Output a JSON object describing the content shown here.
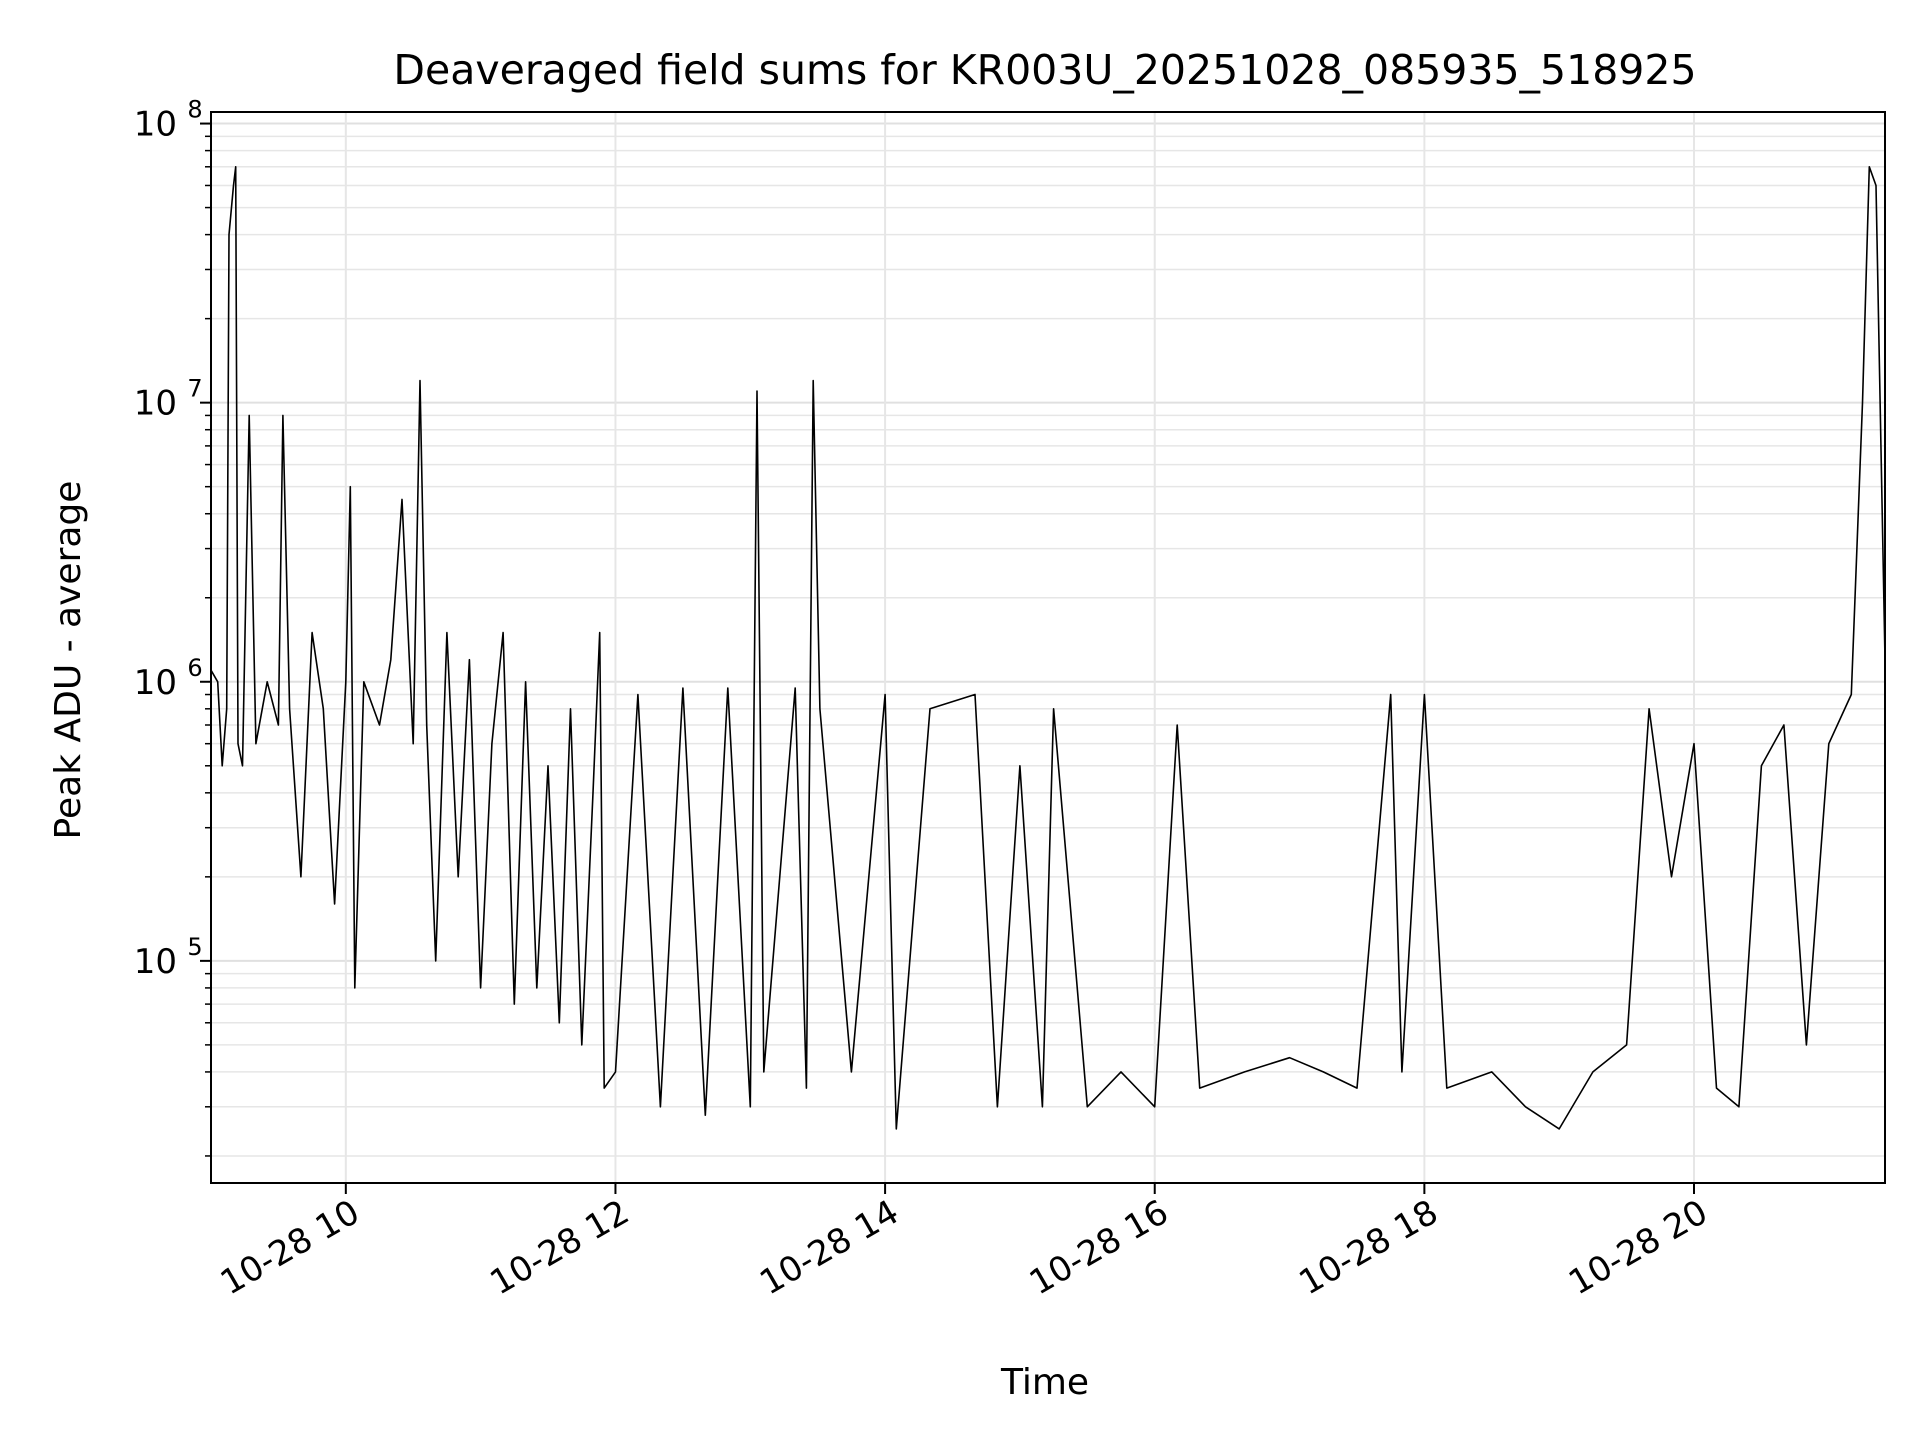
{
  "chart_data": {
    "type": "line",
    "title": "Deaveraged field sums for KR003U_20251028_085935_518925",
    "xlabel": "Time",
    "ylabel": "Peak ADU - average",
    "yscale": "log",
    "ylim": [
      16000,
      110000000
    ],
    "xlim": [
      "2025-10-28 09:00",
      "2025-10-28 21:25"
    ],
    "grid": true,
    "legend": "none",
    "line_color": "#000000",
    "x_ticks": [
      {
        "time": "2025-10-28 10:00",
        "label": "10-28 10"
      },
      {
        "time": "2025-10-28 12:00",
        "label": "10-28 12"
      },
      {
        "time": "2025-10-28 14:00",
        "label": "10-28 14"
      },
      {
        "time": "2025-10-28 16:00",
        "label": "10-28 16"
      },
      {
        "time": "2025-10-28 18:00",
        "label": "10-28 18"
      },
      {
        "time": "2025-10-28 20:00",
        "label": "10-28 20"
      }
    ],
    "y_ticks": [
      {
        "value": 100000,
        "base": "10",
        "exp": "5"
      },
      {
        "value": 1000000,
        "base": "10",
        "exp": "6"
      },
      {
        "value": 10000000,
        "base": "10",
        "exp": "7"
      },
      {
        "value": 100000000,
        "base": "10",
        "exp": "8"
      }
    ],
    "series": [
      {
        "points": [
          [
            "2025-10-28 09:00",
            1100000
          ],
          [
            "2025-10-28 09:03",
            1000000
          ],
          [
            "2025-10-28 09:05",
            500000
          ],
          [
            "2025-10-28 09:07",
            800000
          ],
          [
            "2025-10-28 09:08",
            40000000
          ],
          [
            "2025-10-28 09:10",
            60000000
          ],
          [
            "2025-10-28 09:11",
            70000000
          ],
          [
            "2025-10-28 09:12",
            600000
          ],
          [
            "2025-10-28 09:14",
            500000
          ],
          [
            "2025-10-28 09:17",
            9000000
          ],
          [
            "2025-10-28 09:20",
            600000
          ],
          [
            "2025-10-28 09:25",
            1000000
          ],
          [
            "2025-10-28 09:30",
            700000
          ],
          [
            "2025-10-28 09:32",
            9000000
          ],
          [
            "2025-10-28 09:35",
            800000
          ],
          [
            "2025-10-28 09:40",
            200000
          ],
          [
            "2025-10-28 09:45",
            1500000
          ],
          [
            "2025-10-28 09:50",
            800000
          ],
          [
            "2025-10-28 09:55",
            160000
          ],
          [
            "2025-10-28 10:00",
            1000000
          ],
          [
            "2025-10-28 10:02",
            5000000
          ],
          [
            "2025-10-28 10:04",
            80000
          ],
          [
            "2025-10-28 10:08",
            1000000
          ],
          [
            "2025-10-28 10:15",
            700000
          ],
          [
            "2025-10-28 10:20",
            1200000
          ],
          [
            "2025-10-28 10:25",
            4500000
          ],
          [
            "2025-10-28 10:30",
            600000
          ],
          [
            "2025-10-28 10:33",
            12000000
          ],
          [
            "2025-10-28 10:36",
            700000
          ],
          [
            "2025-10-28 10:40",
            100000
          ],
          [
            "2025-10-28 10:45",
            1500000
          ],
          [
            "2025-10-28 10:50",
            200000
          ],
          [
            "2025-10-28 10:55",
            1200000
          ],
          [
            "2025-10-28 11:00",
            80000
          ],
          [
            "2025-10-28 11:05",
            600000
          ],
          [
            "2025-10-28 11:10",
            1500000
          ],
          [
            "2025-10-28 11:15",
            70000
          ],
          [
            "2025-10-28 11:20",
            1000000
          ],
          [
            "2025-10-28 11:25",
            80000
          ],
          [
            "2025-10-28 11:30",
            500000
          ],
          [
            "2025-10-28 11:35",
            60000
          ],
          [
            "2025-10-28 11:40",
            800000
          ],
          [
            "2025-10-28 11:45",
            50000
          ],
          [
            "2025-10-28 11:50",
            400000
          ],
          [
            "2025-10-28 11:53",
            1500000
          ],
          [
            "2025-10-28 11:55",
            35000
          ],
          [
            "2025-10-28 12:00",
            40000
          ],
          [
            "2025-10-28 12:10",
            900000
          ],
          [
            "2025-10-28 12:20",
            30000
          ],
          [
            "2025-10-28 12:30",
            950000
          ],
          [
            "2025-10-28 12:40",
            28000
          ],
          [
            "2025-10-28 12:50",
            950000
          ],
          [
            "2025-10-28 13:00",
            30000
          ],
          [
            "2025-10-28 13:03",
            11000000
          ],
          [
            "2025-10-28 13:06",
            40000
          ],
          [
            "2025-10-28 13:20",
            950000
          ],
          [
            "2025-10-28 13:25",
            35000
          ],
          [
            "2025-10-28 13:28",
            12000000
          ],
          [
            "2025-10-28 13:31",
            800000
          ],
          [
            "2025-10-28 13:45",
            40000
          ],
          [
            "2025-10-28 14:00",
            900000
          ],
          [
            "2025-10-28 14:05",
            25000
          ],
          [
            "2025-10-28 14:20",
            800000
          ],
          [
            "2025-10-28 14:40",
            900000
          ],
          [
            "2025-10-28 14:50",
            30000
          ],
          [
            "2025-10-28 15:00",
            500000
          ],
          [
            "2025-10-28 15:10",
            30000
          ],
          [
            "2025-10-28 15:15",
            800000
          ],
          [
            "2025-10-28 15:30",
            30000
          ],
          [
            "2025-10-28 15:45",
            40000
          ],
          [
            "2025-10-28 16:00",
            30000
          ],
          [
            "2025-10-28 16:10",
            700000
          ],
          [
            "2025-10-28 16:20",
            35000
          ],
          [
            "2025-10-28 16:40",
            40000
          ],
          [
            "2025-10-28 17:00",
            45000
          ],
          [
            "2025-10-28 17:15",
            40000
          ],
          [
            "2025-10-28 17:30",
            35000
          ],
          [
            "2025-10-28 17:45",
            900000
          ],
          [
            "2025-10-28 17:50",
            40000
          ],
          [
            "2025-10-28 18:00",
            900000
          ],
          [
            "2025-10-28 18:10",
            35000
          ],
          [
            "2025-10-28 18:30",
            40000
          ],
          [
            "2025-10-28 18:45",
            30000
          ],
          [
            "2025-10-28 19:00",
            25000
          ],
          [
            "2025-10-28 19:15",
            40000
          ],
          [
            "2025-10-28 19:30",
            50000
          ],
          [
            "2025-10-28 19:40",
            800000
          ],
          [
            "2025-10-28 19:50",
            200000
          ],
          [
            "2025-10-28 20:00",
            600000
          ],
          [
            "2025-10-28 20:10",
            35000
          ],
          [
            "2025-10-28 20:20",
            30000
          ],
          [
            "2025-10-28 20:30",
            500000
          ],
          [
            "2025-10-28 20:40",
            700000
          ],
          [
            "2025-10-28 20:50",
            50000
          ],
          [
            "2025-10-28 21:00",
            600000
          ],
          [
            "2025-10-28 21:10",
            900000
          ],
          [
            "2025-10-28 21:15",
            10000000
          ],
          [
            "2025-10-28 21:18",
            70000000
          ],
          [
            "2025-10-28 21:21",
            60000000
          ],
          [
            "2025-10-28 21:25",
            1200000
          ]
        ]
      }
    ]
  }
}
